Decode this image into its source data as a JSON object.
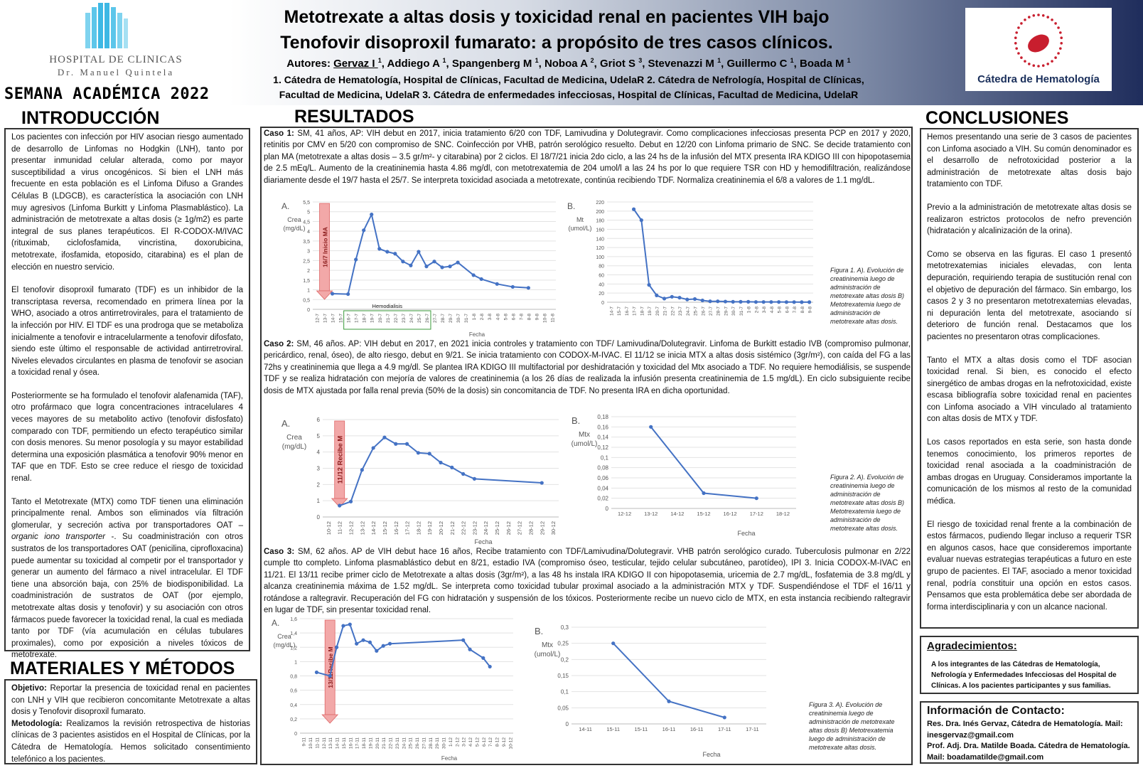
{
  "header": {
    "logo_line1": "HOSPITAL DE CLINICAS",
    "logo_line2": "Dr. Manuel Quintela",
    "event": "SEMANA ACADÉMICA 2022",
    "title_line1": "Metotrexate a altas dosis y toxicidad renal en pacientes VIH bajo",
    "title_line2": "Tenofovir disoproxil fumarato: a propósito de tres casos clínicos.",
    "authors_label": "Autores: ",
    "authors": [
      {
        "name": "Gervaz I",
        "sup": "1"
      },
      {
        "name": "Addiego A",
        "sup": "1"
      },
      {
        "name": "Spangenberg M",
        "sup": "1"
      },
      {
        "name": "Noboa A",
        "sup": "2"
      },
      {
        "name": "Griot S",
        "sup": "3"
      },
      {
        "name": "Stevenazzi M",
        "sup": "1"
      },
      {
        "name": "Guillermo C",
        "sup": "1"
      },
      {
        "name": "Boada M",
        "sup": "1"
      }
    ],
    "affiliation_line1": "1. Cátedra de Hematología, Hospital de Clínicas, Facultad de Medicina, UdelaR 2. Cátedra de Nefrología, Hospital de Clínicas,",
    "affiliation_line2": "Facultad de Medicina, UdelaR  3. Cátedra de enfermedades infecciosas, Hospital de Clínicas, Facultad de Medicina, UdelaR",
    "right_logo_label": "Cátedra de Hematología"
  },
  "introduccion": {
    "title": "INTRODUCCIÓN",
    "p1": "Los pacientes con infección por HIV asocian riesgo aumentado de desarrollo de Linfomas no Hodgkin (LNH), tanto por presentar inmunidad celular alterada, como por mayor susceptibilidad a virus oncogénicos. Si bien el LNH más frecuente en esta población es el Linfoma Difuso a Grandes Células B (LDGCB), es característica la asociación con LNH muy agresivos (Linfoma Burkitt y Linfoma Plasmablástico). La administración de metotrexate a altas dosis (≥ 1g/m2) es parte integral de sus planes terapéuticos. El R-CODOX-M/IVAC (rituximab, ciclofosfamida, vincristina, doxorubicina, metotrexate, ifosfamida, etoposido, citarabina) es el plan de elección en nuestro servicio.",
    "p2": "El tenofovir disoproxil fumarato (TDF) es un inhibidor de la transcriptasa reversa, recomendado en primera línea por la WHO, asociado a otros antirretrovirales, para el tratamiento de la infección por HIV. El TDF es una prodroga que se metaboliza inicialmente a tenofovir e intracelularmente a tenofovir difosfato, siendo este último el responsable de actividad antirretroviral. Niveles elevados circulantes en plasma de tenofovir se asocian a toxicidad renal y ósea.",
    "p3": "Posteriormente se ha formulado el tenofovir alafenamida (TAF), otro profármaco que logra concentraciones intracelulares 4 veces mayores de su metabolito activo (tenofovir disfosfato) comparado con TDF, permitiendo un efecto terapéutico similar con dosis menores. Su menor posología y su mayor estabilidad determina una exposición plasmática a tenofovir 90% menor en TAF que en TDF. Esto se cree reduce el riesgo de toxicidad renal.",
    "p4_a": "Tanto el Metotrexate (MTX) como TDF tienen una eliminación principalmente renal. Ambos son eliminados vía filtración glomerular, y secreción activa por transportadores OAT – ",
    "p4_em": "organic iono transporter",
    "p4_b": " -. Su coadministración con otros sustratos de los transportadores OAT (penicilina, ciprofloxacina) puede aumentar su toxicidad al competir por el transportador y generar un aumento del fármaco a nivel intracelular. El TDF tiene una absorción baja, con 25% de biodisponibilidad. La coadministración de sustratos de OAT (por ejemplo, metotrexate altas dosis y tenofovir) y su asociación con otros fármacos puede favorecer la toxicidad renal, la cual es mediada tanto por TDF (vía acumulación en células tubulares proximales), como por exposición a niveles tóxicos de metotrexate."
  },
  "materiales": {
    "title": "MATERIALES Y MÉTODOS",
    "objetivo_label": "Objetivo:",
    "objetivo": " Reportar la presencia de toxicidad renal en pacientes con LNH y VIH que recibieron concomitante Metotrexate a altas dosis y Tenofovir disoproxil fumarato.",
    "metodologia_label": "Metodología:",
    "metodologia": " Realizamos la revisión retrospectiva de historias clínicas de 3 pacientes asistidos en el Hospital de Clínicas, por la Cátedra de Hematología. Hemos solicitado consentimiento telefónico a los pacientes."
  },
  "resultados": {
    "title": "RESULTADOS",
    "caso1_label": "Caso 1:",
    "caso1": " SM, 41 años, AP: VIH debut en 2017, inicia tratamiento 6/20 con TDF, Lamivudina y Dolutegravir. Como complicaciones infecciosas presenta PCP en 2017 y 2020, retinitis por CMV en 5/20 con compromiso de SNC. Coinfección por VHB, patrón serológico resuelto. Debut en 12/20 con Linfoma primario de SNC. Se decide tratamiento con plan MA (metotrexate a altas dosis – 3.5 gr/m²- y citarabina) por 2 ciclos. El 18/7/21 inicia 2do ciclo, a las 24 hs de la infusión del MTX presenta IRA KDIGO III con hipopotasemia de 2.5 mEq/L. Aumento de la creatininemia hasta 4.86 mg/dl, con metotrexatemia de 204 umol/l a las 24 hs por lo que requiere TSR con HD y hemodifiltración, realizándose diariamente desde el 19/7 hasta el 25/7. Se interpreta toxicidad asociada a metotrexate, continúa recibiendo TDF. Normaliza creatininemia el 6/8 a valores de 1.1 mg/dL.",
    "caso2_label": "Caso 2:",
    "caso2": " SM, 46 años. AP: VIH debut en 2017, en 2021 inicia controles y tratamiento con TDF/ Lamivudina/Dolutegravir. Linfoma de Burkitt estadio IVB (compromiso pulmonar, pericárdico, renal, óseo), de alto riesgo, debut en 9/21. Se inicia tratamiento con CODOX-M-IVAC. El 11/12 se inicia MTX a altas dosis sistémico (3gr/m²), con caída del FG a las 72hs y creatininemia que llega a 4.9 mg/dl. Se plantea IRA KDIGO III multifactorial por deshidratación y toxicidad del Mtx asociado a TDF. No requiere hemodiálisis, se suspende TDF y se realiza hidratación con mejoría de valores de creatininemia (a los 26 días de realizada la infusión presenta creatininemia de 1.5 mg/dL). En ciclo subsiguiente recibe dosis de MTX ajustada por falla renal previa (50% de la dosis) sin concomitancia de TDF. No presenta IRA en dicha oportunidad.",
    "caso3_label": "Caso 3:",
    "caso3": " SM, 62 años. AP de VIH debut hace 16 años, Recibe tratamiento con TDF/Lamivudina/Dolutegravir. VHB patrón serológico curado. Tuberculosis pulmonar en 2/22 cumple tto completo.  Linfoma plasmablástico debut en 8/21, estadio IVA (compromiso óseo, testicular, tejido celular subcutáneo, parotídeo), IPI 3. Inicia CODOX-M-IVAC en 11/21. El 13/11 recibe primer ciclo de Metotrexate a altas dosis (3gr/m²), a las 48 hs instala IRA KDIGO II con hipopotasemia, uricemia de 2.7 mg/dL, fosfatemia de 3.8 mg/dL y alcanza creatininemia máxima de 1.52 mg/dL. Se interpreta como toxicidad tubular proximal asociado a la administración MTX y TDF. Suspendiéndose el TDF el 16/11 y rotándose a raltegravir. Recuperación del FG con hidratación y suspensión de los tóxicos. Posteriormente recibe un nuevo ciclo de MTX, en esta instancia recibiendo raltegravir en lugar de TDF, sin presentar toxicidad renal.",
    "fig1_caption": "Figura 1. A). Evolución de creatininemia luego de administración de metotrexate altas dosis B) Metotrexatemia luego de administración de metotrexate altas dosis.",
    "fig2_caption": "Figura 2. A). Evolución de creatininemia luego de administración de metotrexate altas dosis B) Metotrexatemia luego de administración de metotrexate altas dosis.",
    "fig3_caption": "Figura 3. A). Evolución de creatininemia luego de administración de metotrexate altas dosis B) Metotrexatemia luego de administración de metotrexate altas dosis."
  },
  "conclusiones": {
    "title": "CONCLUSIONES",
    "p1": "Hemos presentando una serie de 3 casos de pacientes con Linfoma asociado a VIH. Su común denominador es el desarrollo de nefrotoxicidad posterior a la administración de metotrexate altas dosis bajo tratamiento con TDF.",
    "p2": "Previo a la administración de metotrexate altas dosis se realizaron estrictos protocolos de nefro prevención (hidratación y alcalinización de la orina).",
    "p3": "Como se observa en las figuras. El caso 1 presentó metotrexatemias iniciales elevadas, con lenta depuración, requiriendo terapia de sustitución renal con el objetivo de depuración del fármaco. Sin embargo, los casos 2 y 3 no presentaron metotrexatemias elevadas, ni depuración lenta del metotrexate, asociando sí deterioro de función renal.   Destacamos que los pacientes no presentaron otras complicaciones.",
    "p4": "Tanto el MTX a altas dosis como el TDF asocian toxicidad renal. Si bien, es conocido el efecto sinergético de ambas drogas en la nefrotoxicidad, existe escasa bibliografía sobre toxicidad renal en pacientes con Linfoma asociado a VIH vinculado al tratamiento con altas dosis de MTX y TDF.",
    "p5": "Los casos reportados en esta serie, son hasta donde tenemos conocimiento, los primeros reportes de toxicidad renal asociada a la coadministración de ambas drogas en Uruguay. Consideramos importante la comunicación de los mismos al resto de la comunidad médica.",
    "p6": "El riesgo de toxicidad renal frente a la combinación de estos fármacos, pudiendo llegar incluso a requerir TSR en algunos casos, hace que consideremos importante evaluar nuevas estrategias terapéuticas a futuro en este grupo de pacientes. El TAF, asociado a menor toxicidad renal, podría constituir una opción en estos casos. Pensamos que esta problemática debe ser abordada de forma interdisciplinaria y con un alcance nacional."
  },
  "agradecimientos": {
    "title": "Agradecimientos:",
    "text": "A los integrantes de las Cátedras de Hematología, Nefrología y Enfermedades Infecciosas del Hospital de Clínicas. A los pacientes participantes y sus familias."
  },
  "contacto": {
    "title": "Información de Contacto:",
    "line1": "Res. Dra. Inés Gervaz,  Cátedra de Hematología. Mail:",
    "line2": "inesgervaz@gmail.com",
    "line3": "Prof. Adj. Dra. Matilde Boada. Cátedra de Hematología.",
    "line4": "Mail: boadamatilde@gmail.com"
  },
  "chart_data": [
    {
      "id": "fig1a",
      "type": "line",
      "panel_label": "A.",
      "ylabel": "Crea (mg/dL)",
      "xlabel": "Fecha",
      "ylim": [
        0,
        5.5
      ],
      "yticks": [
        "0",
        "0,5",
        "1",
        "1,5",
        "2",
        "2,5",
        "3",
        "3,5",
        "4",
        "4,5",
        "5",
        "5,5"
      ],
      "categories": [
        "12-7",
        "13-7",
        "14-7",
        "15-7",
        "16-7",
        "17-7",
        "18-7",
        "19-7",
        "20-7",
        "21-7",
        "22-7",
        "23-7",
        "24-7",
        "25-7",
        "26-7",
        "27-7",
        "28-7",
        "29-7",
        "30-7",
        "31-7",
        "1-8",
        "2-8",
        "3-8",
        "4-8",
        "5-8",
        "6-8",
        "7-8",
        "8-8",
        "9-8",
        "10-8",
        "11-8"
      ],
      "points": [
        [
          2,
          0.8
        ],
        [
          4,
          0.78
        ],
        [
          5,
          2.55
        ],
        [
          6,
          4.05
        ],
        [
          7,
          4.86
        ],
        [
          8,
          3.1
        ],
        [
          9,
          2.95
        ],
        [
          10,
          2.85
        ],
        [
          11,
          2.45
        ],
        [
          12,
          2.25
        ],
        [
          13,
          2.95
        ],
        [
          14,
          2.2
        ],
        [
          15,
          2.45
        ],
        [
          16,
          2.15
        ],
        [
          17,
          2.2
        ],
        [
          18,
          2.4
        ],
        [
          20,
          1.75
        ],
        [
          21,
          1.55
        ],
        [
          23,
          1.3
        ],
        [
          25,
          1.15
        ],
        [
          27,
          1.1
        ]
      ],
      "annotation_vertical": "16/7 Inicio MA",
      "annotation_box": "Hemodialisis"
    },
    {
      "id": "fig1b",
      "type": "line",
      "panel_label": "B.",
      "ylabel": "Mt (umol/L)",
      "ylim": [
        0,
        220
      ],
      "yticks": [
        "0",
        "20",
        "40",
        "60",
        "80",
        "100",
        "120",
        "140",
        "160",
        "180",
        "200",
        "220"
      ],
      "categories": [
        "14-7",
        "15-7",
        "16-7",
        "17-7",
        "18-7",
        "19-7",
        "20-7",
        "21-7",
        "22-7",
        "23-7",
        "24-7",
        "25-7",
        "26-7",
        "27-7",
        "28-7",
        "29-7",
        "30-7",
        "31-7",
        "1-8",
        "2-8",
        "3-8",
        "4-8",
        "5-8",
        "6-8",
        "7-8",
        "8-8",
        "9-8"
      ],
      "points": [
        [
          3,
          204
        ],
        [
          4,
          180
        ],
        [
          5,
          38
        ],
        [
          6,
          15
        ],
        [
          7,
          8
        ],
        [
          8,
          12
        ],
        [
          9,
          10
        ],
        [
          10,
          6
        ],
        [
          11,
          7
        ],
        [
          12,
          4
        ],
        [
          13,
          2
        ],
        [
          14,
          2
        ],
        [
          15,
          1.5
        ],
        [
          16,
          1
        ],
        [
          17,
          1
        ],
        [
          18,
          1
        ],
        [
          19,
          0.5
        ],
        [
          20,
          0.5
        ],
        [
          21,
          0.5
        ],
        [
          22,
          0.5
        ],
        [
          23,
          0.3
        ],
        [
          24,
          0.3
        ],
        [
          25,
          0.2
        ],
        [
          26,
          0.2
        ]
      ]
    },
    {
      "id": "fig2a",
      "type": "line",
      "panel_label": "A.",
      "ylabel": "Crea (mg/dL)",
      "xlabel": "Fecha",
      "ylim": [
        0,
        6
      ],
      "yticks": [
        "0",
        "1",
        "2",
        "3",
        "4",
        "5",
        "6"
      ],
      "categories": [
        "10-12",
        "11-12",
        "12-12",
        "13-12",
        "14-12",
        "15-12",
        "16-12",
        "17-12",
        "18-12",
        "19-12",
        "20-12",
        "21-12",
        "22-12",
        "23-12",
        "24-12",
        "25-12",
        "26-12",
        "27-12",
        "28-12",
        "29-12",
        "30-12"
      ],
      "points": [
        [
          1,
          0.7
        ],
        [
          2,
          0.95
        ],
        [
          3,
          2.9
        ],
        [
          4,
          4.25
        ],
        [
          5,
          4.9
        ],
        [
          6,
          4.5
        ],
        [
          7,
          4.5
        ],
        [
          8,
          3.95
        ],
        [
          9,
          3.9
        ],
        [
          10,
          3.35
        ],
        [
          11,
          3.05
        ],
        [
          12,
          2.65
        ],
        [
          13,
          2.35
        ],
        [
          19,
          2.1
        ]
      ],
      "annotation_vertical": "11/12 Recibe M"
    },
    {
      "id": "fig2b",
      "type": "line",
      "panel_label": "B.",
      "ylabel": "Mtx (umol/L)",
      "xlabel": "Fecha",
      "ylim": [
        0,
        0.18
      ],
      "yticks": [
        "0",
        "0,02",
        "0,04",
        "0,06",
        "0,08",
        "0,1",
        "0,12",
        "0,14",
        "0,16",
        "0,18"
      ],
      "categories": [
        "12-12",
        "13-12",
        "14-12",
        "15-12",
        "16-12",
        "17-12",
        "18-12"
      ],
      "points": [
        [
          1,
          0.16
        ],
        [
          3,
          0.03
        ],
        [
          5,
          0.02
        ]
      ]
    },
    {
      "id": "fig3a",
      "type": "line",
      "panel_label": "A.",
      "ylabel": "Crea (mg/dL)",
      "xlabel": "Fecha",
      "ylim": [
        0,
        1.6
      ],
      "yticks": [
        "0",
        "0,2",
        "0,4",
        "0,6",
        "0,8",
        "1",
        "1,2",
        "1,4",
        "1,6"
      ],
      "categories": [
        "9-11",
        "10-11",
        "11-11",
        "12-11",
        "13-11",
        "14-11",
        "15-11",
        "16-11",
        "17-11",
        "18-11",
        "19-11",
        "20-11",
        "21-11",
        "22-11",
        "23-11",
        "24-11",
        "25-11",
        "26-11",
        "27-11",
        "28-11",
        "29-11",
        "30-11",
        "1-12",
        "2-12",
        "3-12",
        "4-12",
        "5-12",
        "6-12",
        "7-12",
        "8-12",
        "9-12",
        "10-12"
      ],
      "points": [
        [
          2,
          0.85
        ],
        [
          4,
          0.8
        ],
        [
          5,
          1.2
        ],
        [
          6,
          1.5
        ],
        [
          7,
          1.52
        ],
        [
          8,
          1.25
        ],
        [
          9,
          1.3
        ],
        [
          10,
          1.27
        ],
        [
          11,
          1.15
        ],
        [
          12,
          1.22
        ],
        [
          13,
          1.25
        ],
        [
          24,
          1.3
        ],
        [
          25,
          1.17
        ],
        [
          27,
          1.05
        ],
        [
          28,
          0.93
        ]
      ],
      "annotation_vertical": "13/11Recibe M"
    },
    {
      "id": "fig3b",
      "type": "line",
      "panel_label": "B.",
      "ylabel": "Mtx (umol/L)",
      "xlabel": "Fecha",
      "ylim": [
        0,
        0.3
      ],
      "yticks": [
        "0",
        "0,05",
        "0,1",
        "0,15",
        "0,2",
        "0,25",
        "0,3"
      ],
      "categories": [
        "14-11",
        "15-11",
        "15-11",
        "16-11",
        "16-11",
        "17-11",
        "17-11"
      ],
      "points": [
        [
          1,
          0.25
        ],
        [
          3,
          0.07
        ],
        [
          5,
          0.02
        ]
      ]
    }
  ]
}
